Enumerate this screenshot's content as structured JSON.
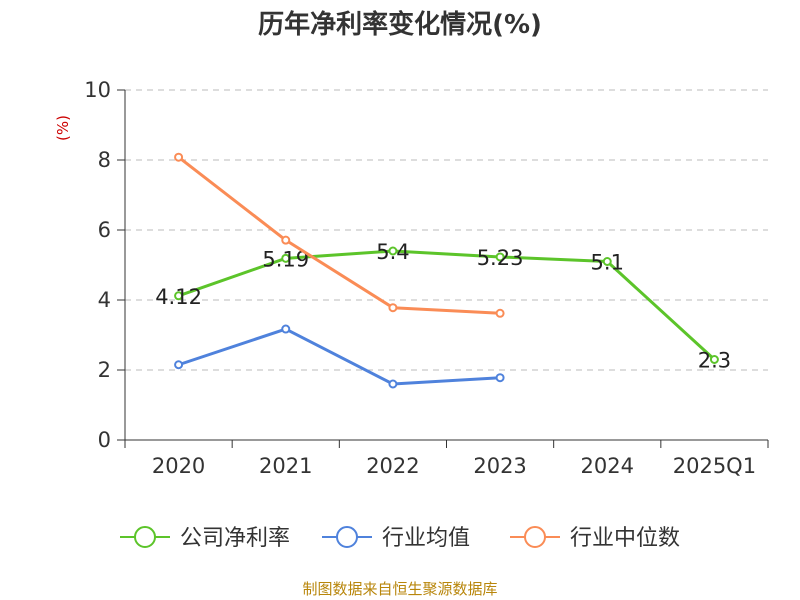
{
  "source_note": "制图数据来自恒生聚源数据库",
  "colors": {
    "company": "#5cc42a",
    "industry_avg": "#4f82dc",
    "industry_median": "#fa8c56",
    "ylabel": "#cc0000",
    "source": "#b8860b",
    "grid": "#bbbbbb",
    "axis": "#333333"
  },
  "chart_data": {
    "type": "line",
    "title": "历年净利率变化情况(%)",
    "ylabel": "(%)",
    "xlabel": "",
    "categories": [
      "2020",
      "2021",
      "2022",
      "2023",
      "2024",
      "2025Q1"
    ],
    "ylim": [
      0,
      10
    ],
    "yticks": [
      0,
      2,
      4,
      6,
      8,
      10
    ],
    "grid": true,
    "legend_position": "bottom",
    "series": [
      {
        "name": "公司净利率",
        "color": "#5cc42a",
        "values": [
          4.12,
          5.19,
          5.4,
          5.23,
          5.1,
          2.3
        ],
        "labels": [
          "4.12",
          "5.19",
          "5.4",
          "5.23",
          "5.1",
          "2.3"
        ]
      },
      {
        "name": "行业均值",
        "color": "#4f82dc",
        "values": [
          2.15,
          3.17,
          1.6,
          1.78,
          null,
          null
        ]
      },
      {
        "name": "行业中位数",
        "color": "#fa8c56",
        "values": [
          8.08,
          5.71,
          3.78,
          3.62,
          null,
          null
        ]
      }
    ]
  }
}
